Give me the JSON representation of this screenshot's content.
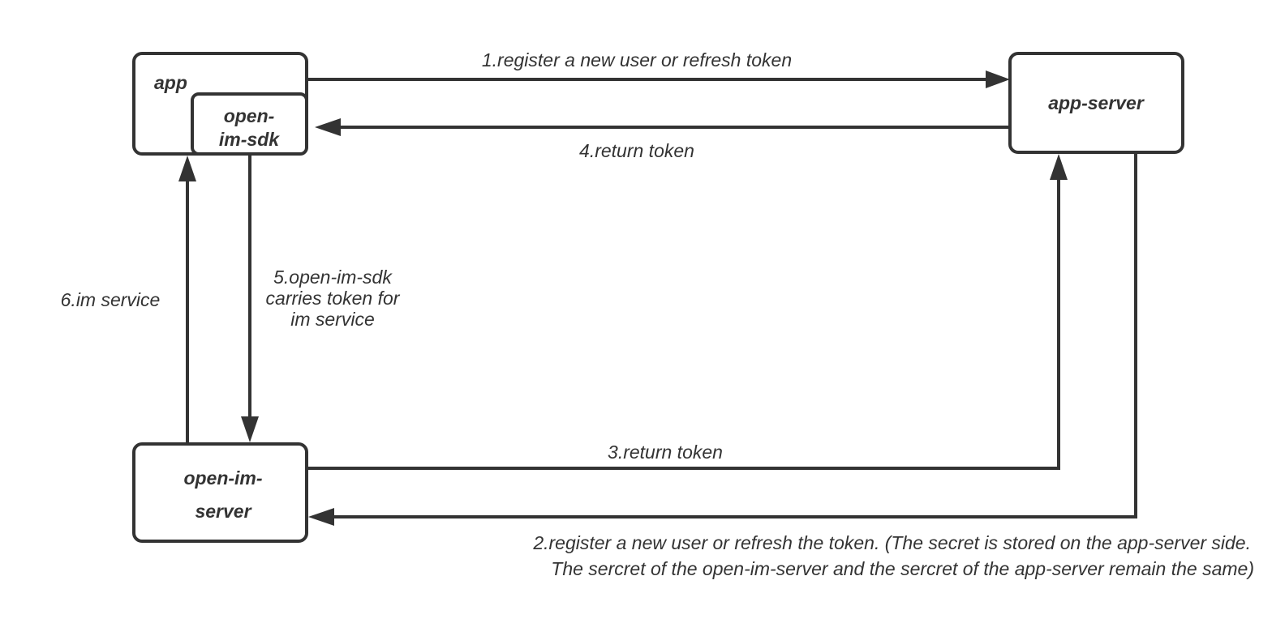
{
  "nodes": {
    "app": "app",
    "sdk_line1": "open-",
    "sdk_line2": "im-sdk",
    "app_server": "app-server",
    "im_server_line1": "open-im-",
    "im_server_line2": "server"
  },
  "edges": {
    "e1": "1.register a new user or refresh token",
    "e2_line1": "2.register a new user or refresh the token. (The secret is stored on the app-server side.",
    "e2_line2": "The sercret of the open-im-server and the sercret of the app-server remain the same)",
    "e3": "3.return token",
    "e4": "4.return token",
    "e5_line1": "5.open-im-sdk",
    "e5_line2": "carries token for",
    "e5_line3": "im service",
    "e6": "6.im service"
  },
  "colors": {
    "stroke": "#333333",
    "background": "#ffffff"
  }
}
